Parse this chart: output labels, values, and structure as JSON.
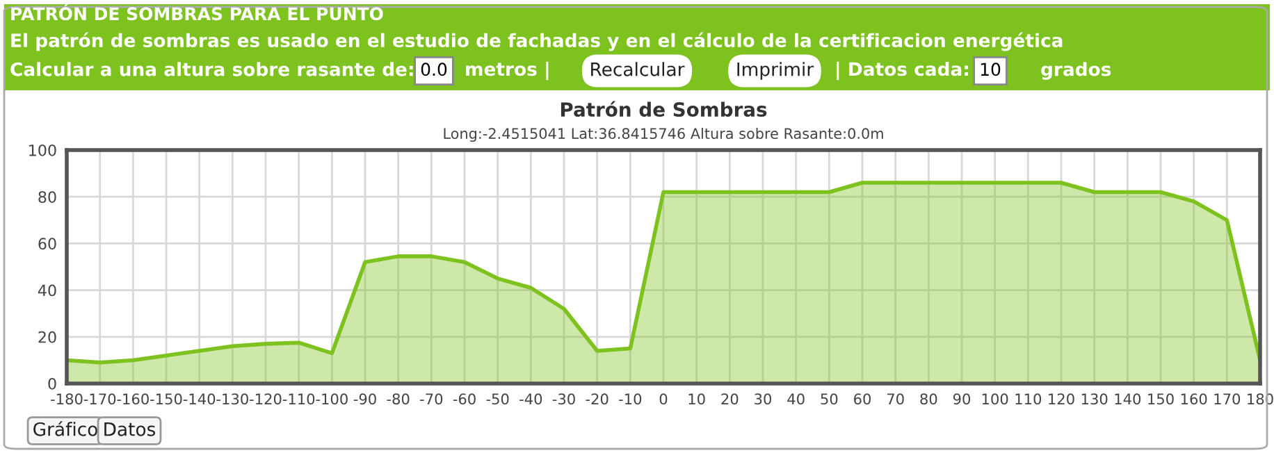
{
  "chart_data": {
    "type": "area",
    "title": "Patrón de Sombras",
    "subtitle": "Long:-2.4515041 Lat:36.8415746 Altura sobre Rasante:0.0m",
    "annotations": [
      "PATRÓN DE SOMBRAS PARA EL PUNTO",
      "El patrón de sombras es usado en el estudio de fachadas y en el cálculo de la certificacion energética",
      "Calcular a una altura sobre rasante de:",
      "0.0",
      "metros |",
      "Recalcular",
      "Imprimir",
      "| Datos cada:",
      "10",
      "grados",
      "Gráfico",
      "Datos"
    ],
    "x": [
      -180,
      -170,
      -160,
      -150,
      -140,
      -130,
      -120,
      -110,
      -100,
      -90,
      -80,
      -70,
      -60,
      -50,
      -40,
      -30,
      -20,
      -10,
      0,
      10,
      20,
      30,
      40,
      50,
      60,
      70,
      80,
      90,
      100,
      110,
      120,
      130,
      140,
      150,
      160,
      170,
      180
    ],
    "series": [
      {
        "color": "#7dc21e",
        "values": [
          10,
          9,
          10,
          12,
          14,
          16,
          17,
          17.5,
          13,
          52,
          54.5,
          54.5,
          52,
          45,
          41,
          32,
          14,
          15,
          82,
          82,
          82,
          82,
          82,
          82,
          86,
          86,
          86,
          86,
          86,
          86,
          86,
          82,
          82,
          82,
          78,
          70,
          10
        ]
      }
    ],
    "xlim": [
      -180,
      180
    ],
    "xticks": [
      -180,
      -170,
      -160,
      -150,
      -140,
      -130,
      -120,
      -110,
      -100,
      -90,
      -80,
      -70,
      -60,
      -50,
      -40,
      -30,
      -20,
      -10,
      0,
      10,
      20,
      30,
      40,
      50,
      60,
      70,
      80,
      90,
      100,
      110,
      120,
      130,
      140,
      150,
      160,
      170,
      180
    ],
    "ylim": [
      0,
      100
    ],
    "yticks": [
      0,
      20,
      40,
      60,
      80,
      100
    ],
    "grid": true,
    "marker": "none",
    "line_style": "solid"
  }
}
